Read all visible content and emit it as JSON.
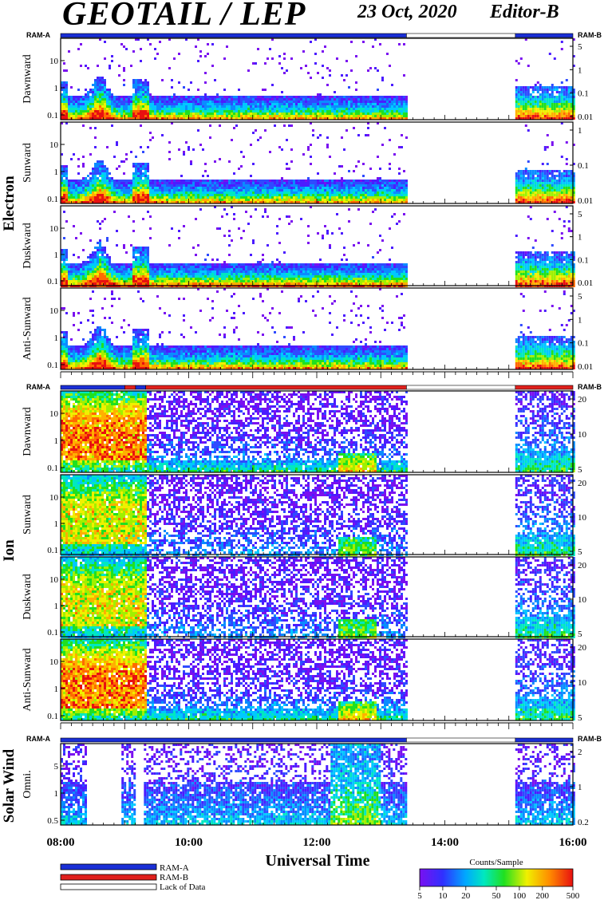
{
  "header": {
    "title": "GEOTAIL / LEP",
    "date": "23 Oct, 2020",
    "editor": "Editor-B"
  },
  "groups": {
    "electron": "Electron",
    "ion": "Ion",
    "solar_wind": "Solar Wind"
  },
  "ram_labels": {
    "left": "RAM-A",
    "right": "RAM-B"
  },
  "x_axis": {
    "title": "Universal Time",
    "ticks": [
      "08:00",
      "10:00",
      "12:00",
      "14:00",
      "16:00"
    ],
    "range_hours": [
      8,
      16
    ]
  },
  "legend": {
    "ram_a": "RAM-A",
    "ram_b": "RAM-B",
    "lack": "Lack of Data",
    "colors": {
      "ram_a": "#1a2fd6",
      "ram_b": "#e0201c",
      "lack": "#ffffff"
    }
  },
  "colorbar": {
    "title": "Counts/Sample",
    "ticks": [
      "5",
      "10",
      "20",
      "50",
      "100",
      "200",
      "500"
    ]
  },
  "chart_data": [
    {
      "type": "heatmap",
      "group": "Electron",
      "ylabel": "Dawnward",
      "y_left_ticks": [
        "10",
        "1",
        "0.1"
      ],
      "y_right_ticks": [
        "5",
        "1",
        "0.1",
        "0.01"
      ],
      "mode_bar": [
        {
          "from": 8.0,
          "to": 13.4,
          "mode": "RAM-A"
        },
        {
          "from": 13.4,
          "to": 15.1,
          "mode": "Lack of Data"
        },
        {
          "from": 15.1,
          "to": 16.0,
          "mode": "RAM-A"
        }
      ],
      "data_intervals": [
        [
          8.0,
          13.4
        ],
        [
          15.1,
          16.0
        ]
      ]
    },
    {
      "type": "heatmap",
      "group": "Electron",
      "ylabel": "Sunward",
      "y_left_ticks": [
        "10",
        "1",
        "0.1"
      ],
      "y_right_ticks": [
        "1",
        "0.1",
        "0.01"
      ],
      "data_intervals": [
        [
          8.0,
          13.4
        ],
        [
          15.1,
          16.0
        ]
      ]
    },
    {
      "type": "heatmap",
      "group": "Electron",
      "ylabel": "Duskward",
      "y_left_ticks": [
        "10",
        "1",
        "0.1"
      ],
      "y_right_ticks": [
        "5",
        "1",
        "0.1",
        "0.01"
      ],
      "data_intervals": [
        [
          8.0,
          13.4
        ],
        [
          15.1,
          16.0
        ]
      ]
    },
    {
      "type": "heatmap",
      "group": "Electron",
      "ylabel": "Anti-Sunward",
      "y_left_ticks": [
        "10",
        "1",
        "0.1"
      ],
      "y_right_ticks": [
        "5",
        "1",
        "0.1",
        "0.01"
      ],
      "data_intervals": [
        [
          8.0,
          13.4
        ],
        [
          15.1,
          16.0
        ]
      ]
    },
    {
      "type": "heatmap",
      "group": "Ion",
      "ylabel": "Dawnward",
      "y_left_ticks": [
        "10",
        "1",
        "0.1"
      ],
      "y_right_ticks": [
        "20",
        "10",
        "5"
      ],
      "mode_bar": [
        {
          "from": 8.0,
          "to": 9.0,
          "mode": "RAM-A"
        },
        {
          "from": 9.0,
          "to": 9.17,
          "mode": "RAM-B"
        },
        {
          "from": 9.17,
          "to": 9.33,
          "mode": "RAM-A"
        },
        {
          "from": 9.33,
          "to": 13.4,
          "mode": "RAM-B"
        },
        {
          "from": 13.4,
          "to": 15.1,
          "mode": "Lack of Data"
        },
        {
          "from": 15.1,
          "to": 16.0,
          "mode": "RAM-B"
        }
      ],
      "data_intervals": [
        [
          8.0,
          13.4
        ],
        [
          15.1,
          16.0
        ]
      ]
    },
    {
      "type": "heatmap",
      "group": "Ion",
      "ylabel": "Sunward",
      "y_left_ticks": [
        "10",
        "1",
        "0.1"
      ],
      "y_right_ticks": [
        "20",
        "10",
        "5"
      ],
      "data_intervals": [
        [
          8.0,
          13.4
        ],
        [
          15.1,
          16.0
        ]
      ]
    },
    {
      "type": "heatmap",
      "group": "Ion",
      "ylabel": "Duskward",
      "y_left_ticks": [
        "10",
        "1",
        "0.1"
      ],
      "y_right_ticks": [
        "20",
        "10",
        "5"
      ],
      "data_intervals": [
        [
          8.0,
          13.4
        ],
        [
          15.1,
          16.0
        ]
      ]
    },
    {
      "type": "heatmap",
      "group": "Ion",
      "ylabel": "Anti-Sunward",
      "y_left_ticks": [
        "10",
        "1",
        "0.1"
      ],
      "y_right_ticks": [
        "20",
        "10",
        "5"
      ],
      "data_intervals": [
        [
          8.0,
          13.4
        ],
        [
          15.1,
          16.0
        ]
      ]
    },
    {
      "type": "heatmap",
      "group": "Solar Wind",
      "ylabel": "Omni.",
      "y_left_ticks": [
        "5",
        "1",
        "0.5"
      ],
      "y_right_ticks": [
        "2",
        "1",
        "0.2"
      ],
      "mode_bar": [
        {
          "from": 8.0,
          "to": 13.4,
          "mode": "RAM-A"
        },
        {
          "from": 13.4,
          "to": 15.1,
          "mode": "Lack of Data"
        },
        {
          "from": 15.1,
          "to": 16.0,
          "mode": "RAM-A"
        }
      ],
      "data_intervals": [
        [
          8.0,
          8.4
        ],
        [
          8.95,
          9.15
        ],
        [
          9.3,
          13.4
        ],
        [
          15.1,
          16.0
        ]
      ]
    }
  ]
}
